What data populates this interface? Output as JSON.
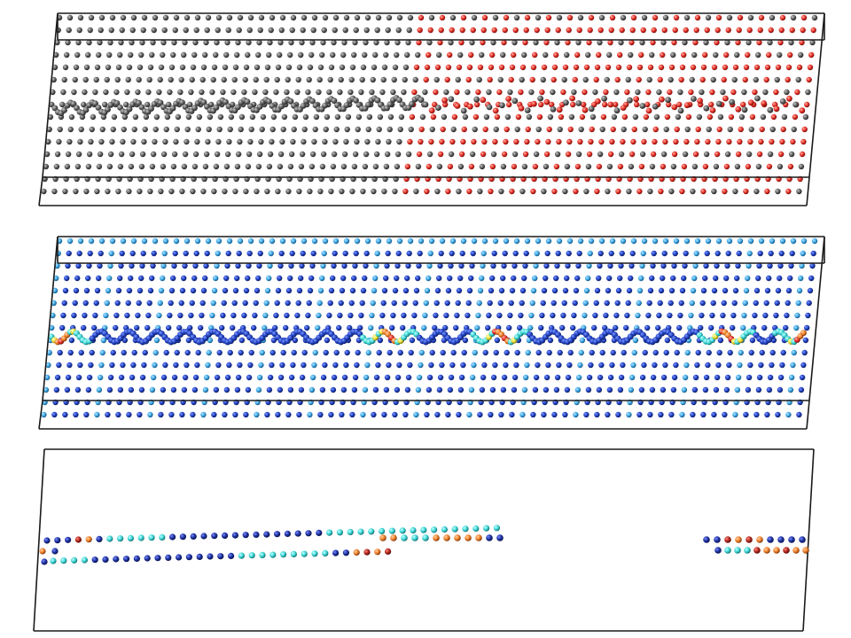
{
  "figure": {
    "panels": [
      {
        "id": "top",
        "description_name": "atomic-structure-colored-by-type",
        "palette": {
          "gray": "#5c5c5c",
          "red": "#e32b22",
          "edge": "#1a1a1a"
        }
      },
      {
        "id": "middle",
        "description_name": "atomic-structure-colored-by-property",
        "palette": {
          "blue": "#1f3fbf",
          "lightblue": "#3aa7e6",
          "cyan": "#39d4d4",
          "yellow": "#e9e032",
          "orange": "#ef7e26",
          "red": "#c4221b",
          "edge": "#1a1a1a"
        }
      },
      {
        "id": "bottom",
        "description_name": "dislocation-core-atoms",
        "palette": {
          "navy": "#1b2f9c",
          "cyan": "#37c6d8",
          "orange": "#e0542a",
          "darkred": "#8e1f1b",
          "edge": "#1a1a1a"
        }
      }
    ]
  }
}
